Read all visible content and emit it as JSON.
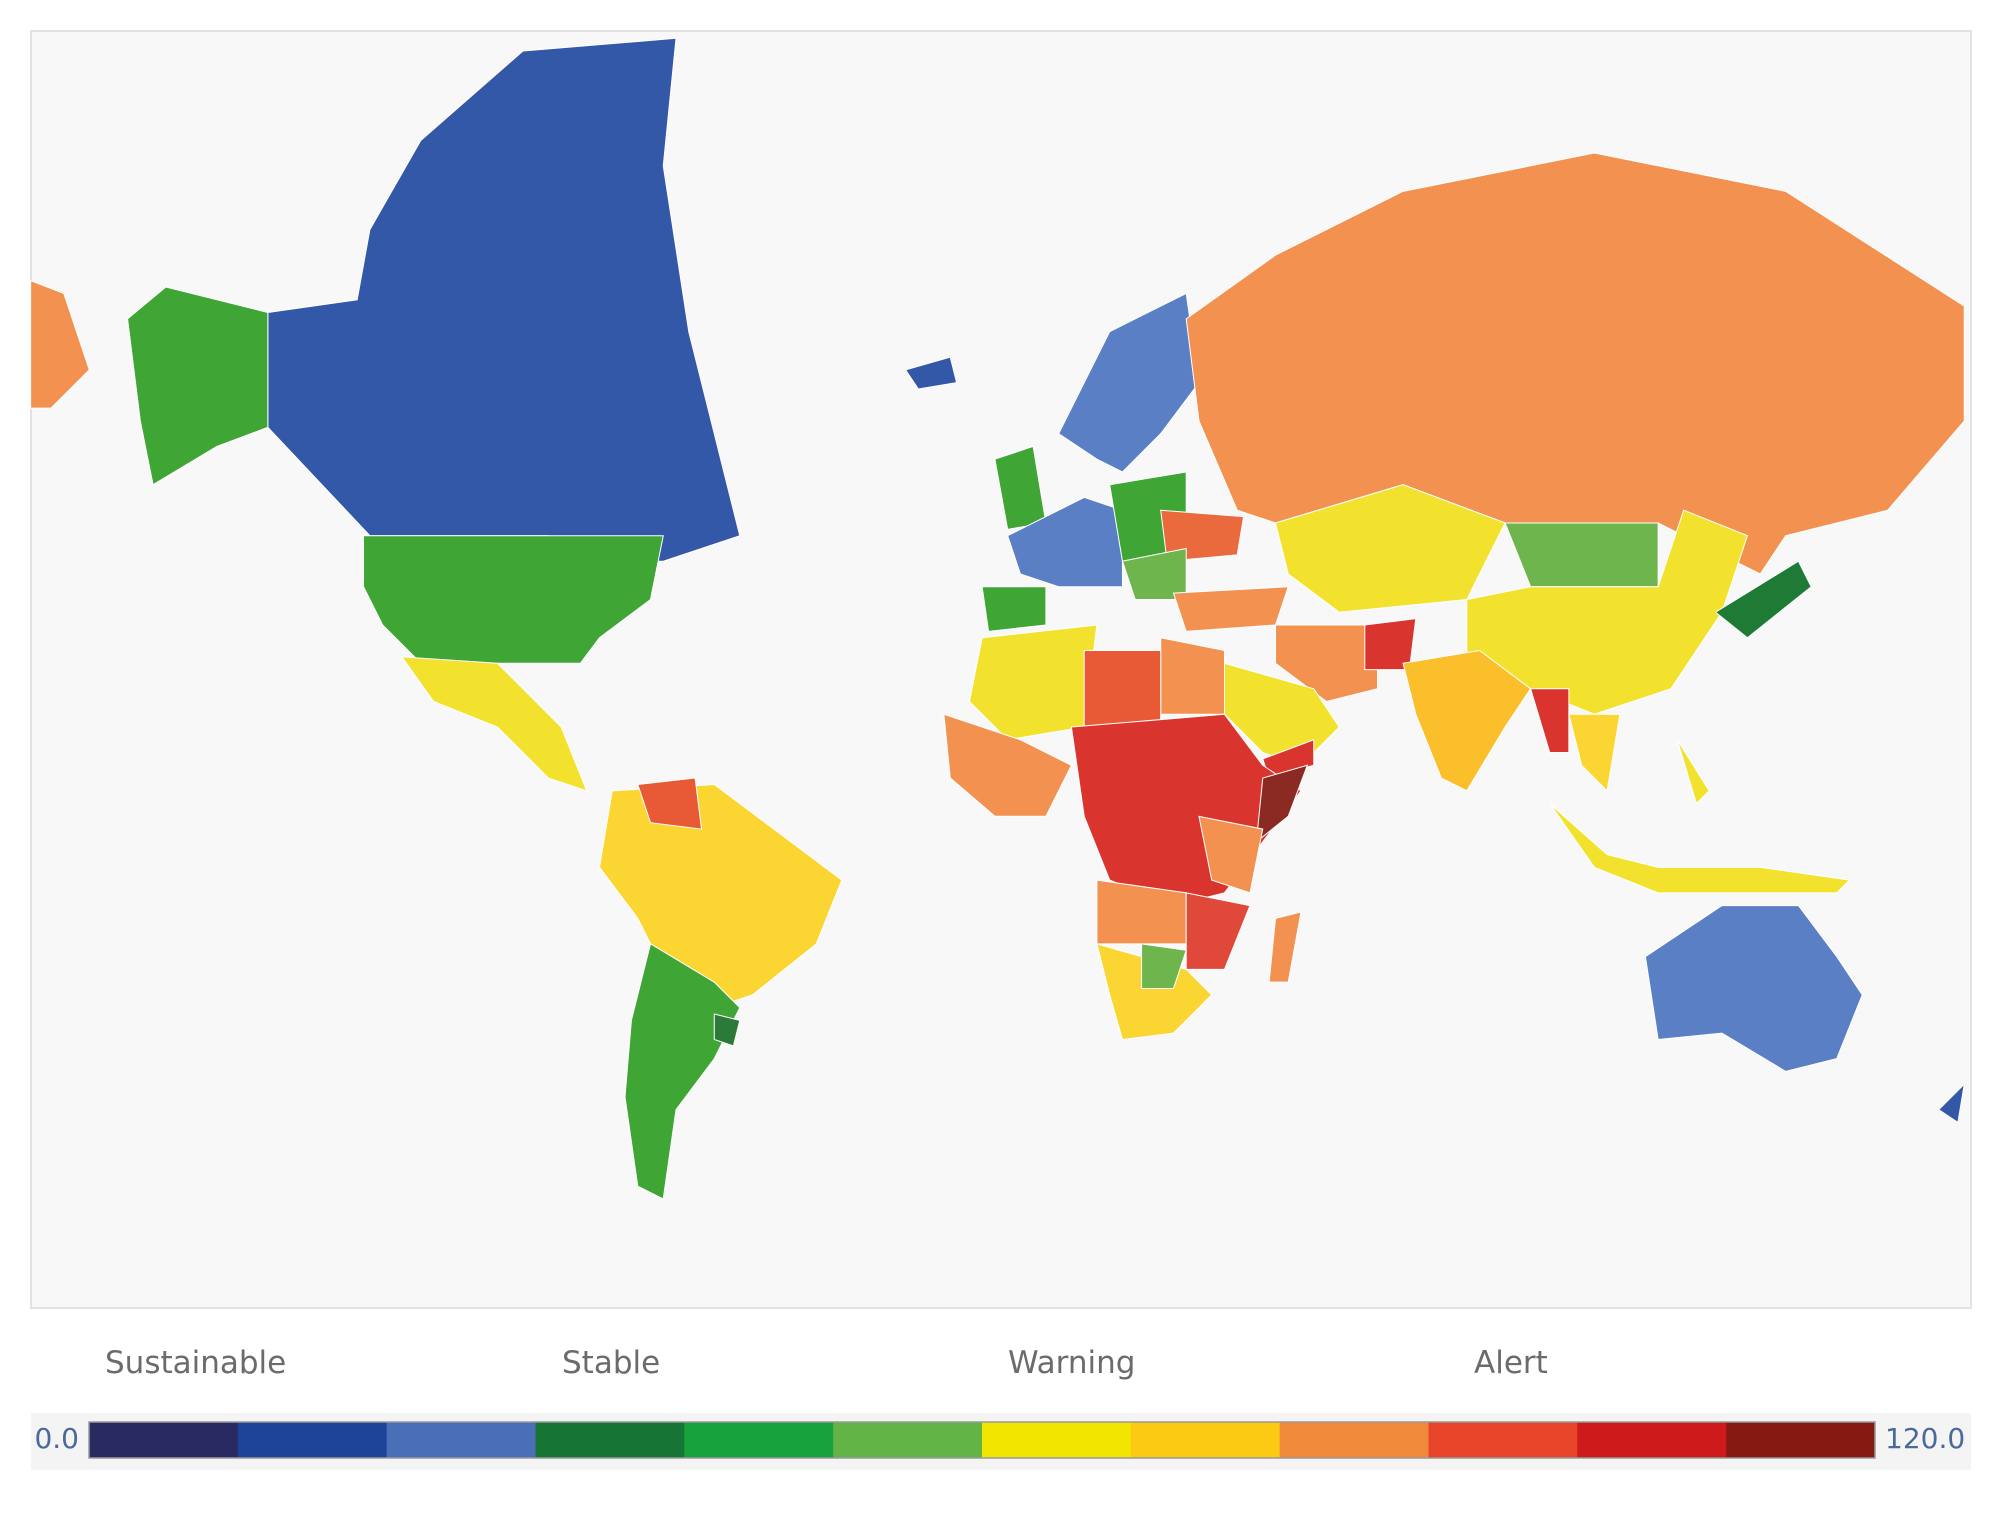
{
  "legend": {
    "categories": [
      "Sustainable",
      "Stable",
      "Warning",
      "Alert"
    ],
    "min": {
      "value": 0,
      "label": "0.0"
    },
    "max": {
      "value": 120,
      "label": "120.0"
    },
    "colors": [
      "#2a2a62",
      "#1e4499",
      "#4a6eb8",
      "#167434",
      "#17a23b",
      "#63b446",
      "#f2e500",
      "#fcca13",
      "#f08a3a",
      "#e8442a",
      "#cf1a1b",
      "#861a12"
    ]
  }
}
